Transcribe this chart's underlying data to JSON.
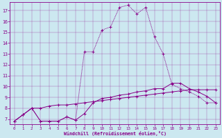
{
  "xlabel": "Windchill (Refroidissement éolien,°C)",
  "bg_color": "#cce8f0",
  "line_color": "#880088",
  "xlim": [
    -0.5,
    23.5
  ],
  "ylim": [
    6.5,
    17.8
  ],
  "xticks": [
    0,
    1,
    2,
    3,
    4,
    5,
    6,
    7,
    8,
    9,
    10,
    11,
    12,
    13,
    14,
    15,
    16,
    17,
    18,
    19,
    20,
    21,
    22,
    23
  ],
  "yticks": [
    7,
    8,
    9,
    10,
    11,
    12,
    13,
    14,
    15,
    16,
    17
  ],
  "line1_x": [
    0,
    1,
    2,
    3,
    4,
    5,
    6,
    7,
    8,
    9,
    10,
    11,
    12,
    13,
    14,
    15,
    16,
    17,
    18,
    19,
    20,
    21,
    22,
    23
  ],
  "line1_y": [
    6.8,
    7.4,
    8.0,
    8.0,
    8.2,
    8.3,
    8.3,
    8.4,
    8.5,
    8.6,
    8.7,
    8.8,
    8.9,
    9.0,
    9.1,
    9.2,
    9.3,
    9.4,
    9.5,
    9.6,
    9.7,
    9.7,
    9.7,
    9.7
  ],
  "line2_x": [
    0,
    1,
    2,
    3,
    4,
    5,
    6,
    7,
    8,
    9,
    10,
    11,
    12,
    13,
    14,
    15,
    16,
    17,
    18,
    19,
    20,
    21,
    22,
    23
  ],
  "line2_y": [
    6.8,
    7.4,
    8.0,
    6.8,
    6.8,
    6.8,
    7.2,
    6.9,
    7.5,
    8.5,
    8.9,
    9.0,
    9.2,
    9.3,
    9.5,
    9.6,
    9.8,
    9.8,
    10.3,
    10.3,
    9.8,
    9.5,
    9.1,
    8.5
  ],
  "line3_x": [
    0,
    1,
    2,
    3,
    4,
    5,
    6,
    7,
    8,
    9,
    10,
    11,
    12,
    13,
    14,
    15,
    16,
    17,
    18,
    19,
    20,
    21,
    22,
    23
  ],
  "line3_y": [
    6.8,
    7.4,
    8.0,
    6.8,
    6.8,
    6.8,
    7.2,
    6.9,
    13.2,
    13.2,
    15.2,
    15.5,
    17.3,
    17.5,
    16.7,
    17.3,
    14.6,
    13.0,
    10.2,
    9.8,
    9.5,
    9.1,
    8.5,
    8.5
  ]
}
